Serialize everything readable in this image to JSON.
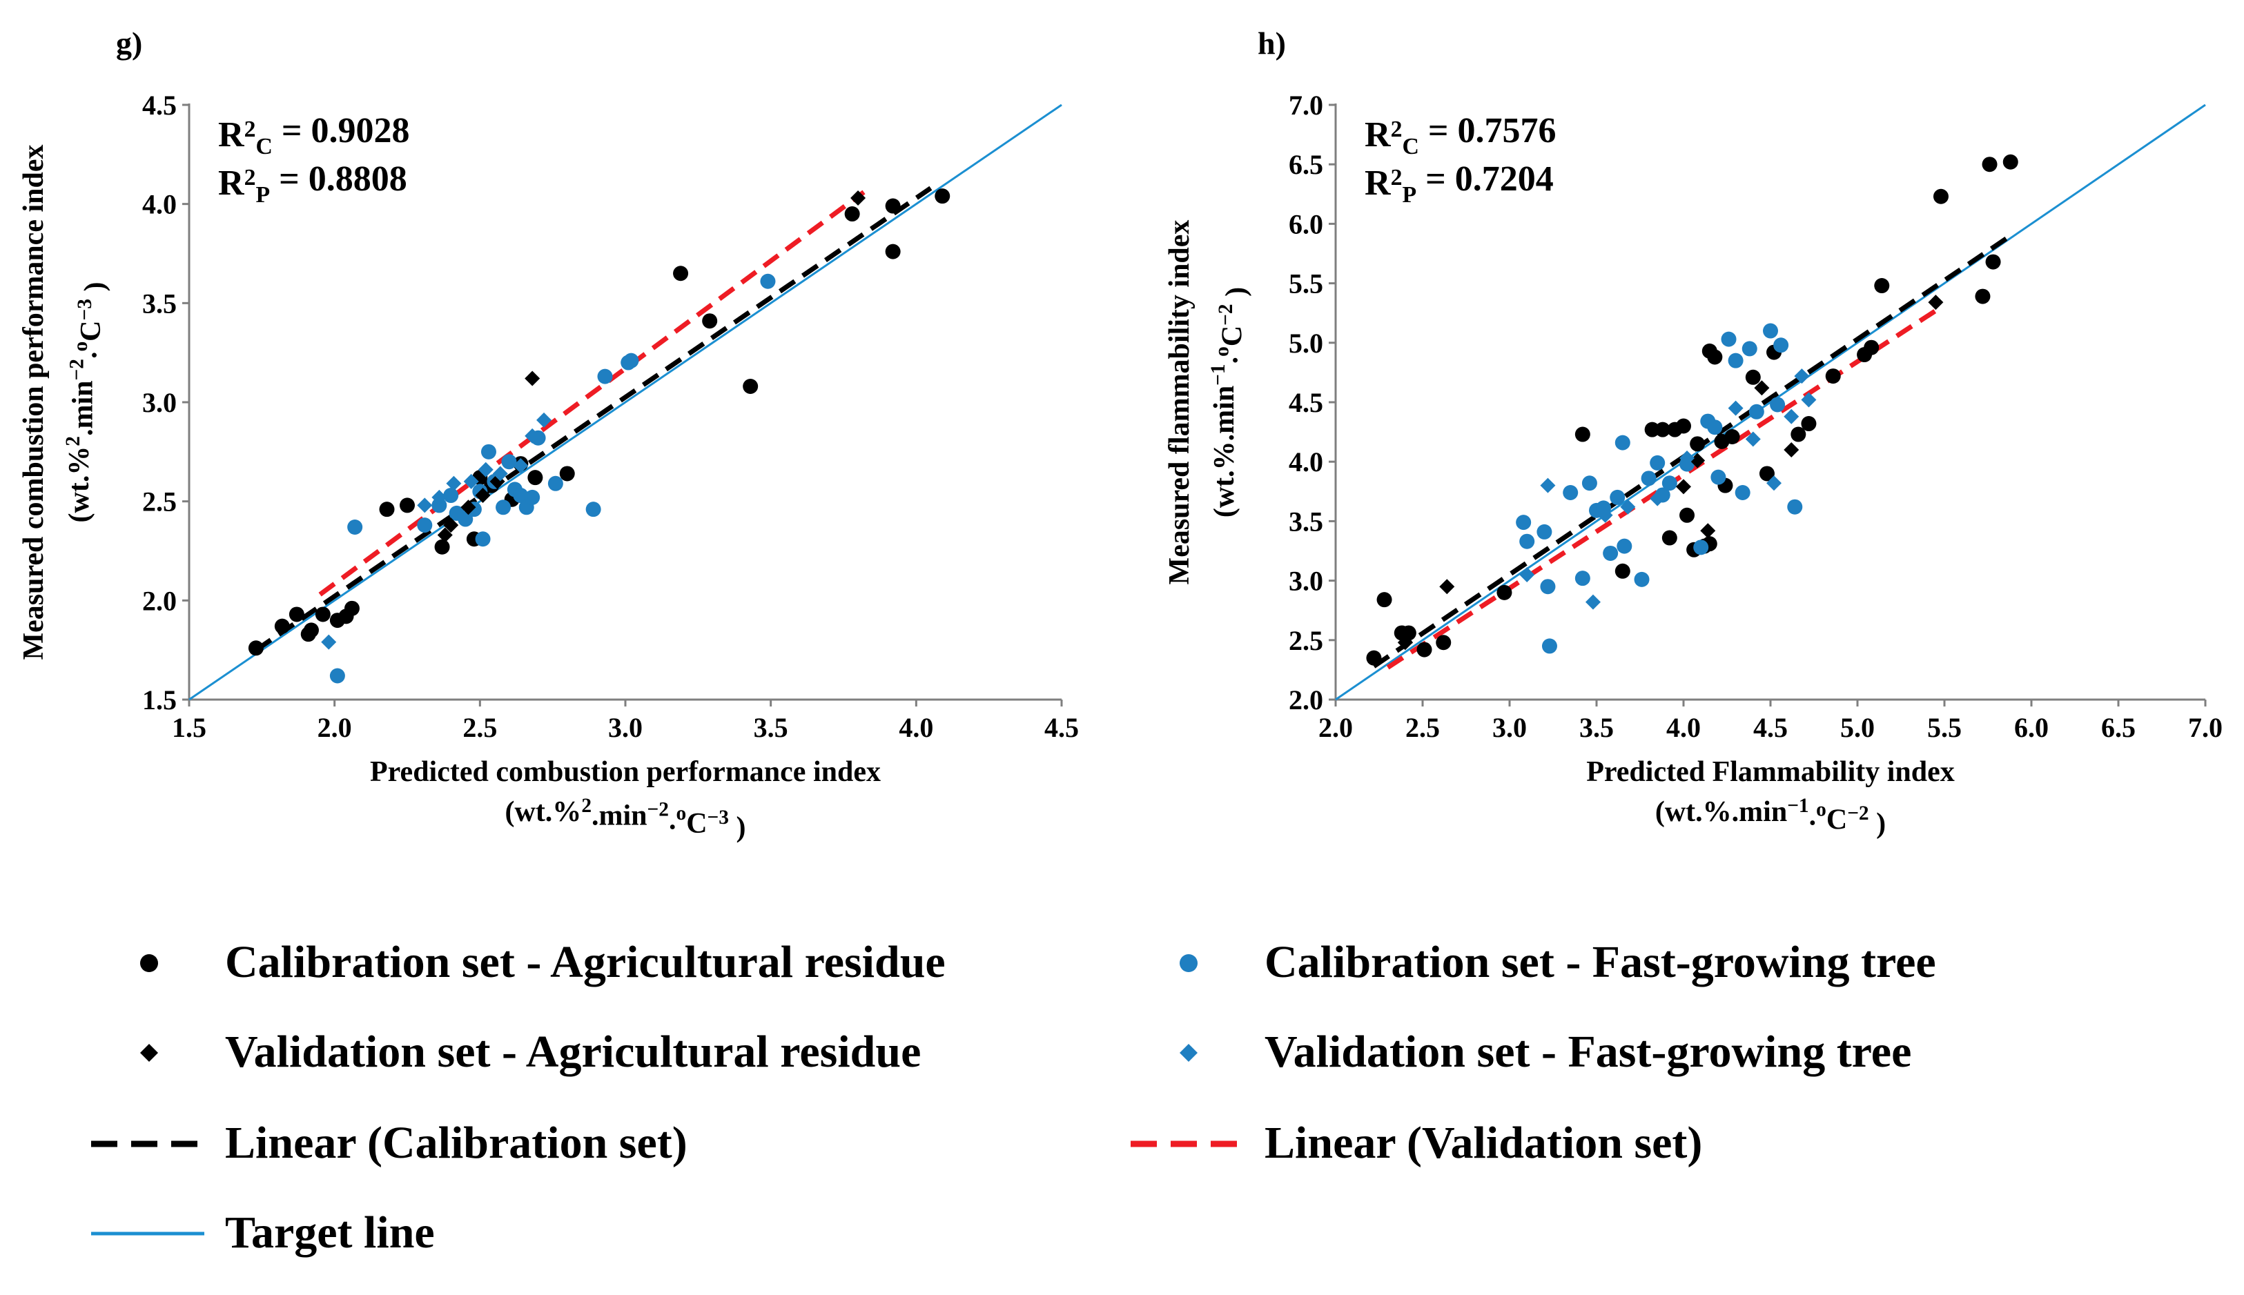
{
  "colors": {
    "agri": "#000000",
    "tree": "#1f7fc1",
    "target": "#1b8fd1",
    "cal_line": "#000000",
    "val_line": "#ee1c24"
  },
  "legend": {
    "cal_agri": "Calibration set - Agricultural residue",
    "cal_tree": "Calibration set - Fast-growing tree",
    "val_agri": "Validation set - Agricultural residue",
    "val_tree": "Validation set - Fast-growing tree",
    "lin_cal": "Linear (Calibration set)",
    "lin_val": "Linear (Validation set)",
    "target": "Target line"
  },
  "chart_data": [
    {
      "type": "scatter",
      "panel": "g)",
      "r2c": {
        "pre": "R",
        "sup": "2",
        "sub": "C",
        "val": " = 0.9028"
      },
      "r2p": {
        "pre": "R",
        "sup": "2",
        "sub": "P",
        "val": " = 0.8808"
      },
      "xlabel": {
        "line1": "Predicted combustion performance index",
        "line2": [
          {
            "t": "(wt.%"
          },
          {
            "t": "2",
            "sup": true
          },
          {
            "t": ".min"
          },
          {
            "t": "−2",
            "sup": true
          },
          {
            "t": "."
          },
          {
            "t": "o",
            "sup": true
          },
          {
            "t": "C"
          },
          {
            "t": "−3",
            "sup": true
          },
          {
            "t": " )"
          }
        ]
      },
      "ylabel": {
        "line1": "Measured combustion performance index",
        "line2": [
          {
            "t": "(wt.%"
          },
          {
            "t": "2",
            "sup": true
          },
          {
            "t": ".min"
          },
          {
            "t": "−2",
            "sup": true
          },
          {
            "t": "."
          },
          {
            "t": "o",
            "sup": true
          },
          {
            "t": "C"
          },
          {
            "t": "−3",
            "sup": true
          },
          {
            "t": " )"
          }
        ]
      },
      "xlim": [
        1.5,
        4.5
      ],
      "ylim": [
        1.5,
        4.5
      ],
      "ticks": [
        "1.5",
        "2.0",
        "2.5",
        "3.0",
        "3.5",
        "4.0",
        "4.5"
      ],
      "lin_cal": {
        "x": [
          1.73,
          4.05
        ],
        "y": [
          1.75,
          4.08
        ]
      },
      "lin_val": {
        "x": [
          1.95,
          3.82
        ],
        "y": [
          2.03,
          4.06
        ]
      },
      "target": {
        "x": [
          1.5,
          4.5
        ],
        "y": [
          1.5,
          4.5
        ]
      },
      "series": [
        {
          "name": "Calibration set - Agricultural residue",
          "marker": "circle",
          "color": "agri",
          "points": [
            [
              1.73,
              1.76
            ],
            [
              1.82,
              1.87
            ],
            [
              1.87,
              1.93
            ],
            [
              1.92,
              1.85
            ],
            [
              1.91,
              1.83
            ],
            [
              1.96,
              1.93
            ],
            [
              2.01,
              1.9
            ],
            [
              2.04,
              1.92
            ],
            [
              2.06,
              1.96
            ],
            [
              2.18,
              2.46
            ],
            [
              2.25,
              2.48
            ],
            [
              2.37,
              2.27
            ],
            [
              2.48,
              2.31
            ],
            [
              2.5,
              2.62
            ],
            [
              2.54,
              2.58
            ],
            [
              2.61,
              2.51
            ],
            [
              2.64,
              2.69
            ],
            [
              2.69,
              2.62
            ],
            [
              2.8,
              2.64
            ],
            [
              3.19,
              3.65
            ],
            [
              3.29,
              3.41
            ],
            [
              3.43,
              3.08
            ],
            [
              3.78,
              3.95
            ],
            [
              3.92,
              3.99
            ],
            [
              3.92,
              3.76
            ],
            [
              4.09,
              4.04
            ]
          ]
        },
        {
          "name": "Calibration set - Fast-growing tree",
          "marker": "circle",
          "color": "tree",
          "points": [
            [
              2.01,
              1.62
            ],
            [
              2.07,
              2.37
            ],
            [
              2.31,
              2.38
            ],
            [
              2.36,
              2.48
            ],
            [
              2.4,
              2.53
            ],
            [
              2.42,
              2.44
            ],
            [
              2.45,
              2.41
            ],
            [
              2.48,
              2.46
            ],
            [
              2.5,
              2.55
            ],
            [
              2.51,
              2.31
            ],
            [
              2.53,
              2.75
            ],
            [
              2.55,
              2.6
            ],
            [
              2.58,
              2.47
            ],
            [
              2.6,
              2.7
            ],
            [
              2.62,
              2.56
            ],
            [
              2.64,
              2.53
            ],
            [
              2.66,
              2.47
            ],
            [
              2.68,
              2.52
            ],
            [
              2.7,
              2.82
            ],
            [
              2.76,
              2.59
            ],
            [
              2.89,
              2.46
            ],
            [
              2.93,
              3.13
            ],
            [
              3.01,
              3.2
            ],
            [
              3.02,
              3.21
            ],
            [
              3.49,
              3.61
            ]
          ]
        },
        {
          "name": "Validation set - Agricultural residue",
          "marker": "diamond",
          "color": "agri",
          "points": [
            [
              2.38,
              2.33
            ],
            [
              2.4,
              2.38
            ],
            [
              2.46,
              2.47
            ],
            [
              2.51,
              2.53
            ],
            [
              2.56,
              2.6
            ],
            [
              2.68,
              3.12
            ],
            [
              3.8,
              4.03
            ]
          ]
        },
        {
          "name": "Validation set - Fast-growing tree",
          "marker": "diamond",
          "color": "tree",
          "points": [
            [
              1.98,
              1.79
            ],
            [
              2.31,
              2.48
            ],
            [
              2.36,
              2.52
            ],
            [
              2.41,
              2.59
            ],
            [
              2.47,
              2.6
            ],
            [
              2.52,
              2.66
            ],
            [
              2.57,
              2.64
            ],
            [
              2.64,
              2.68
            ],
            [
              2.68,
              2.83
            ],
            [
              2.72,
              2.91
            ]
          ]
        }
      ]
    },
    {
      "type": "scatter",
      "panel": "h)",
      "r2c": {
        "pre": "R",
        "sup": "2",
        "sub": "C",
        "val": " = 0.7576"
      },
      "r2p": {
        "pre": "R",
        "sup": "2",
        "sub": "P",
        "val": " = 0.7204"
      },
      "xlabel": {
        "line1": "Predicted Flammability index",
        "line2": [
          {
            "t": "(wt.%.min"
          },
          {
            "t": "−1",
            "sup": true
          },
          {
            "t": "."
          },
          {
            "t": "o",
            "sup": true
          },
          {
            "t": "C"
          },
          {
            "t": "−2",
            "sup": true
          },
          {
            "t": " )"
          }
        ]
      },
      "ylabel": {
        "line1": "Measured flammability index",
        "line2": [
          {
            "t": "(wt.%.min"
          },
          {
            "t": "−1",
            "sup": true
          },
          {
            "t": "."
          },
          {
            "t": "o",
            "sup": true
          },
          {
            "t": "C"
          },
          {
            "t": "−2",
            "sup": true
          },
          {
            "t": " )"
          }
        ]
      },
      "xlim": [
        2.0,
        7.0
      ],
      "ylim": [
        2.0,
        7.0
      ],
      "ticks": [
        "2.0",
        "2.5",
        "3.0",
        "3.5",
        "4.0",
        "4.5",
        "5.0",
        "5.5",
        "6.0",
        "6.5",
        "7.0"
      ],
      "lin_cal": {
        "x": [
          2.22,
          5.88
        ],
        "y": [
          2.28,
          5.9
        ]
      },
      "lin_val": {
        "x": [
          2.3,
          5.45
        ],
        "y": [
          2.27,
          5.27
        ]
      },
      "target": {
        "x": [
          2.0,
          7.0
        ],
        "y": [
          2.0,
          7.0
        ]
      },
      "series": [
        {
          "name": "Calibration set - Agricultural residue",
          "marker": "circle",
          "color": "agri",
          "points": [
            [
              2.22,
              2.35
            ],
            [
              2.28,
              2.84
            ],
            [
              2.38,
              2.56
            ],
            [
              2.42,
              2.56
            ],
            [
              2.51,
              2.42
            ],
            [
              2.62,
              2.48
            ],
            [
              2.97,
              2.9
            ],
            [
              3.42,
              4.23
            ],
            [
              3.65,
              3.08
            ],
            [
              3.82,
              4.27
            ],
            [
              3.88,
              4.27
            ],
            [
              3.92,
              3.36
            ],
            [
              3.95,
              4.27
            ],
            [
              4.0,
              4.3
            ],
            [
              4.02,
              3.55
            ],
            [
              4.06,
              3.26
            ],
            [
              4.08,
              4.15
            ],
            [
              4.12,
              3.29
            ],
            [
              4.15,
              3.31
            ],
            [
              4.15,
              4.93
            ],
            [
              4.18,
              4.88
            ],
            [
              4.22,
              4.17
            ],
            [
              4.24,
              3.8
            ],
            [
              4.28,
              4.21
            ],
            [
              4.4,
              4.71
            ],
            [
              4.48,
              3.9
            ],
            [
              4.52,
              4.92
            ],
            [
              4.66,
              4.23
            ],
            [
              4.72,
              4.32
            ],
            [
              4.86,
              4.72
            ],
            [
              5.04,
              4.9
            ],
            [
              5.08,
              4.96
            ],
            [
              5.14,
              5.48
            ],
            [
              5.48,
              6.23
            ],
            [
              5.72,
              5.39
            ],
            [
              5.76,
              6.5
            ],
            [
              5.78,
              5.68
            ],
            [
              5.88,
              6.52
            ]
          ]
        },
        {
          "name": "Calibration set - Fast-growing tree",
          "marker": "circle",
          "color": "tree",
          "points": [
            [
              3.08,
              3.49
            ],
            [
              3.1,
              3.33
            ],
            [
              3.2,
              3.41
            ],
            [
              3.22,
              2.95
            ],
            [
              3.23,
              2.45
            ],
            [
              3.35,
              3.74
            ],
            [
              3.42,
              3.02
            ],
            [
              3.46,
              3.82
            ],
            [
              3.5,
              3.59
            ],
            [
              3.54,
              3.61
            ],
            [
              3.58,
              3.23
            ],
            [
              3.62,
              3.7
            ],
            [
              3.65,
              4.16
            ],
            [
              3.66,
              3.29
            ],
            [
              3.76,
              3.01
            ],
            [
              3.8,
              3.86
            ],
            [
              3.85,
              3.99
            ],
            [
              3.88,
              3.72
            ],
            [
              3.92,
              3.82
            ],
            [
              4.02,
              3.98
            ],
            [
              4.1,
              3.28
            ],
            [
              4.14,
              4.34
            ],
            [
              4.18,
              4.29
            ],
            [
              4.2,
              3.87
            ],
            [
              4.26,
              5.03
            ],
            [
              4.3,
              4.85
            ],
            [
              4.34,
              3.74
            ],
            [
              4.38,
              4.95
            ],
            [
              4.42,
              4.42
            ],
            [
              4.5,
              5.1
            ],
            [
              4.54,
              4.48
            ],
            [
              4.56,
              4.98
            ],
            [
              4.64,
              3.62
            ]
          ]
        },
        {
          "name": "Validation set - Agricultural residue",
          "marker": "diamond",
          "color": "agri",
          "points": [
            [
              2.4,
              2.48
            ],
            [
              2.64,
              2.95
            ],
            [
              4.0,
              3.79
            ],
            [
              4.08,
              4.01
            ],
            [
              4.14,
              3.42
            ],
            [
              4.45,
              4.62
            ],
            [
              4.62,
              4.1
            ],
            [
              5.45,
              5.34
            ]
          ]
        },
        {
          "name": "Validation set - Fast-growing tree",
          "marker": "diamond",
          "color": "tree",
          "points": [
            [
              3.1,
              3.05
            ],
            [
              3.22,
              3.8
            ],
            [
              3.48,
              2.82
            ],
            [
              3.55,
              3.55
            ],
            [
              3.68,
              3.62
            ],
            [
              3.85,
              3.69
            ],
            [
              4.02,
              4.03
            ],
            [
              4.3,
              4.45
            ],
            [
              4.4,
              4.19
            ],
            [
              4.52,
              3.82
            ],
            [
              4.62,
              4.38
            ],
            [
              4.68,
              4.72
            ],
            [
              4.72,
              4.52
            ]
          ]
        }
      ]
    }
  ]
}
